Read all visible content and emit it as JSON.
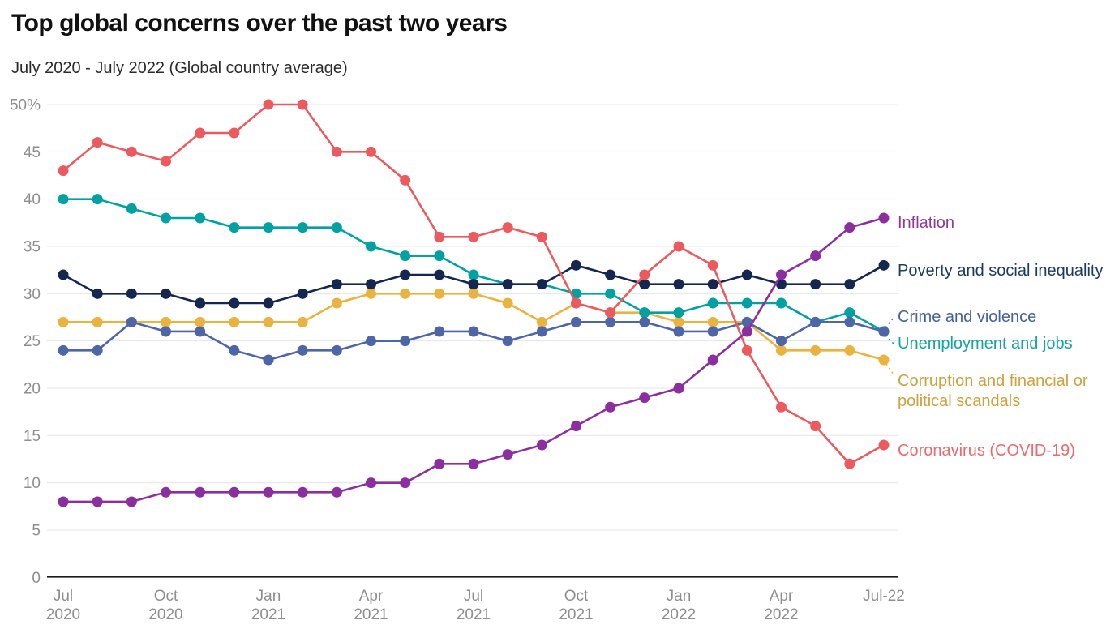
{
  "header": {
    "title": "Top global concerns over the past two years",
    "subtitle": "July 2020 - July 2022 (Global country average)"
  },
  "chart_data": {
    "type": "line",
    "x": [
      "Jul 2020",
      "Aug 2020",
      "Sep 2020",
      "Oct 2020",
      "Nov 2020",
      "Dec 2020",
      "Jan 2021",
      "Feb 2021",
      "Mar 2021",
      "Apr 2021",
      "May 2021",
      "Jun 2021",
      "Jul 2021",
      "Aug 2021",
      "Sep 2021",
      "Oct 2021",
      "Nov 2021",
      "Dec 2021",
      "Jan 2022",
      "Feb 2022",
      "Mar 2022",
      "Apr 2022",
      "May 2022",
      "Jun 2022",
      "Jul 2022"
    ],
    "x_tick_labels": [
      {
        "index": 0,
        "line1": "Jul",
        "line2": "2020"
      },
      {
        "index": 3,
        "line1": "Oct",
        "line2": "2020"
      },
      {
        "index": 6,
        "line1": "Jan",
        "line2": "2021"
      },
      {
        "index": 9,
        "line1": "Apr",
        "line2": "2021"
      },
      {
        "index": 12,
        "line1": "Jul",
        "line2": "2021"
      },
      {
        "index": 15,
        "line1": "Oct",
        "line2": "2021"
      },
      {
        "index": 18,
        "line1": "Jan",
        "line2": "2022"
      },
      {
        "index": 21,
        "line1": "Apr",
        "line2": "2022"
      },
      {
        "index": 24,
        "line1": "Jul-22",
        "line2": ""
      }
    ],
    "ylim": [
      0,
      50
    ],
    "y_ticks": [
      0,
      5,
      10,
      15,
      20,
      25,
      30,
      35,
      40,
      45,
      50
    ],
    "y_top_tick_label": "50%",
    "grid": true,
    "legend_position": "right",
    "legend_order": [
      "inflation",
      "poverty",
      "crime",
      "unemployment",
      "corruption",
      "coronavirus"
    ],
    "series": [
      {
        "id": "corruption",
        "name": "Corruption and financial or political scandals",
        "label_lines": [
          "Corruption and financial or",
          "political scandals"
        ],
        "color": "#e9b340",
        "label_color": "#cda23f",
        "values": [
          27,
          27,
          27,
          27,
          27,
          27,
          27,
          27,
          29,
          30,
          30,
          30,
          30,
          29,
          27,
          29,
          28,
          28,
          27,
          27,
          27,
          24,
          24,
          24,
          23
        ]
      },
      {
        "id": "unemployment",
        "name": "Unemployment and jobs",
        "color": "#00a1a0",
        "label_color": "#17a2a2",
        "values": [
          40,
          40,
          39,
          38,
          38,
          37,
          37,
          37,
          37,
          35,
          34,
          34,
          32,
          31,
          31,
          30,
          30,
          28,
          28,
          29,
          29,
          29,
          27,
          28,
          26
        ]
      },
      {
        "id": "crime",
        "name": "Crime and violence",
        "color": "#4e66a6",
        "label_color": "#47619b",
        "values": [
          24,
          24,
          27,
          26,
          26,
          24,
          23,
          24,
          24,
          25,
          25,
          26,
          26,
          25,
          26,
          27,
          27,
          27,
          26,
          26,
          27,
          25,
          27,
          27,
          26
        ]
      },
      {
        "id": "poverty",
        "name": "Poverty and social inequality",
        "color": "#152750",
        "label_color": "#1e3a63",
        "values": [
          32,
          30,
          30,
          30,
          29,
          29,
          29,
          30,
          31,
          31,
          32,
          32,
          31,
          31,
          31,
          33,
          32,
          31,
          31,
          31,
          32,
          31,
          31,
          31,
          33
        ]
      },
      {
        "id": "coronavirus",
        "name": "Coronavirus (COVID-19)",
        "color": "#ea5a5e",
        "label_color": "#e96a6f",
        "values": [
          43,
          46,
          45,
          44,
          47,
          47,
          50,
          50,
          45,
          45,
          42,
          36,
          36,
          37,
          36,
          29,
          28,
          32,
          35,
          33,
          24,
          18,
          16,
          12,
          14
        ]
      },
      {
        "id": "inflation",
        "name": "Inflation",
        "color": "#8c2f9e",
        "label_color": "#8d3a9b",
        "values": [
          8,
          8,
          8,
          9,
          9,
          9,
          9,
          9,
          9,
          10,
          10,
          12,
          12,
          13,
          14,
          16,
          18,
          19,
          20,
          23,
          26,
          32,
          34,
          37,
          38
        ]
      }
    ]
  }
}
